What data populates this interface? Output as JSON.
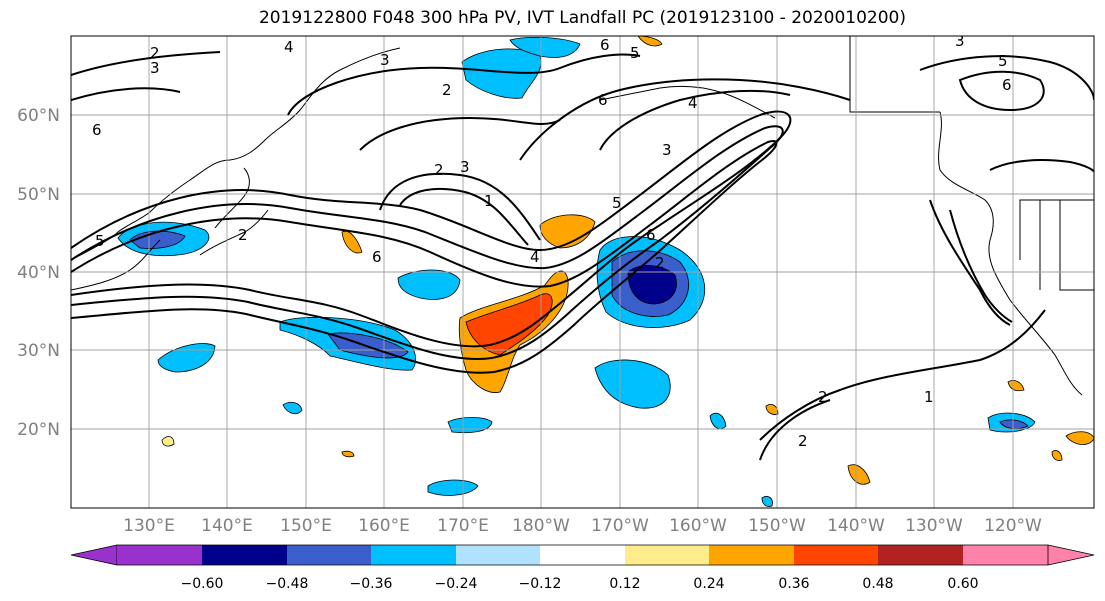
{
  "title": "2019122800 F048 300 hPa PV, IVT Landfall PC (2019123100 - 2020010200)",
  "lat_labels": [
    "60°N",
    "50°N",
    "40°N",
    "30°N",
    "20°N"
  ],
  "lon_labels": [
    "130°E",
    "140°E",
    "150°E",
    "160°E",
    "170°E",
    "180°W",
    "170°W",
    "160°W",
    "150°W",
    "140°W",
    "130°W",
    "120°W"
  ],
  "colorbar": {
    "colors": [
      "#9932CC",
      "#00008B",
      "#3A5FCD",
      "#00BFFF",
      "#B0E2FF",
      "#FFFFFF",
      "#FFEC8B",
      "#FFA500",
      "#FF4500",
      "#B22222",
      "#FF82AB"
    ],
    "tick_labels": [
      "−0.60",
      "−0.48",
      "−0.36",
      "−0.24",
      "−0.12",
      "0.12",
      "0.24",
      "0.36",
      "0.48",
      "0.60"
    ]
  },
  "contour_labels": [
    "2",
    "3",
    "4",
    "3",
    "2",
    "6",
    "5",
    "6",
    "4",
    "3",
    "6",
    "2",
    "3",
    "1",
    "5",
    "6",
    "5",
    "2",
    "4",
    "6",
    "2",
    "1",
    "2",
    "2",
    "3",
    "6",
    "5"
  ]
}
